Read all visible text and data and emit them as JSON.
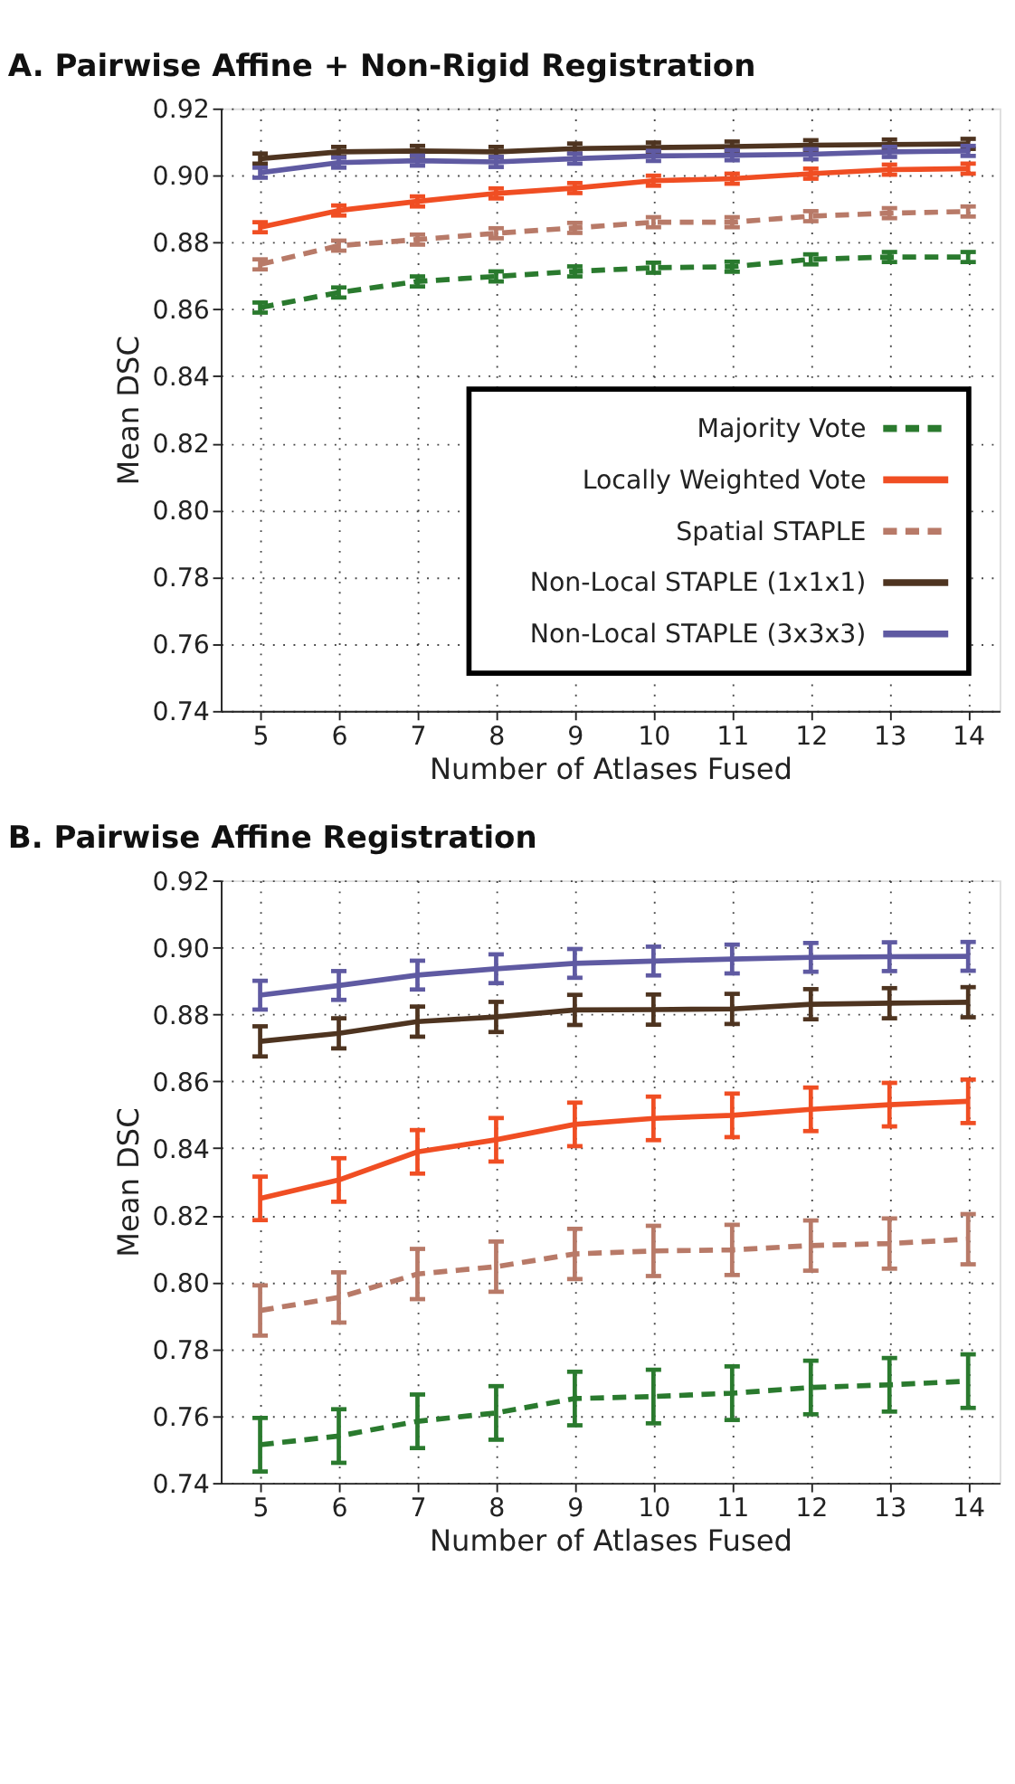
{
  "chart_data": [
    {
      "type": "line",
      "title": "A. Pairwise Affine + Non-Rigid Registration",
      "xlabel": "Number of Atlases Fused",
      "ylabel": "Mean DSC",
      "x": [
        5,
        6,
        7,
        8,
        9,
        10,
        11,
        12,
        13,
        14
      ],
      "xlim": [
        4.5,
        14.4
      ],
      "xticks": [
        5,
        6,
        7,
        8,
        9,
        10,
        11,
        12,
        13,
        14
      ],
      "ylim": [
        0.74,
        0.92
      ],
      "yticks": [
        {
          "value": 0.74,
          "label": "0.74"
        },
        {
          "value": 0.76,
          "label": "0.76"
        },
        {
          "value": 0.78,
          "label": "0.78"
        },
        {
          "value": 0.8,
          "label": "0.80"
        },
        {
          "value": 0.82,
          "label": "0.82"
        },
        {
          "value": 0.84,
          "label": "0.84"
        },
        {
          "value": 0.86,
          "label": "0.86"
        },
        {
          "value": 0.88,
          "label": "0.88"
        },
        {
          "value": 0.9,
          "label": "0.90"
        },
        {
          "value": 0.92,
          "label": "0.92"
        }
      ],
      "grid": true,
      "legend": "bottom right",
      "marker": "none",
      "series": [
        {
          "name": "Majority Vote",
          "color": "#2a7a2e",
          "line_style": "dashed",
          "values": [
            0.8605,
            0.865,
            0.8683,
            0.8698,
            0.8713,
            0.8724,
            0.8727,
            0.8749,
            0.8756,
            0.8756
          ],
          "errors": [
            0.0015,
            0.0015,
            0.0015,
            0.0015,
            0.0015,
            0.0015,
            0.0015,
            0.0015,
            0.0015,
            0.0015
          ]
        },
        {
          "name": "Locally Weighted Vote",
          "color": "#f04e23",
          "line_style": "solid",
          "values": [
            0.8845,
            0.8895,
            0.8922,
            0.8946,
            0.8962,
            0.8984,
            0.899,
            0.9005,
            0.9017,
            0.902
          ],
          "errors": [
            0.0015,
            0.0015,
            0.0015,
            0.0015,
            0.0015,
            0.0015,
            0.0015,
            0.0015,
            0.0015,
            0.0015
          ]
        },
        {
          "name": "Spatial STAPLE",
          "color": "#b87a68",
          "line_style": "dashed",
          "values": [
            0.8734,
            0.879,
            0.8808,
            0.8827,
            0.8843,
            0.886,
            0.886,
            0.8878,
            0.8887,
            0.8892
          ],
          "errors": [
            0.0015,
            0.0015,
            0.0015,
            0.0015,
            0.0015,
            0.0015,
            0.0015,
            0.0015,
            0.0015,
            0.0015
          ]
        },
        {
          "name": "Non-Local STAPLE (1x1x1)",
          "color": "#4e3420",
          "line_style": "solid",
          "values": [
            0.905,
            0.907,
            0.9073,
            0.907,
            0.908,
            0.9083,
            0.9086,
            0.909,
            0.9092,
            0.9094
          ],
          "errors": [
            0.0015,
            0.0015,
            0.0015,
            0.0015,
            0.0015,
            0.0015,
            0.0015,
            0.0015,
            0.0015,
            0.0015
          ]
        },
        {
          "name": "Non-Local STAPLE (3x3x3)",
          "color": "#5f5aa2",
          "line_style": "solid",
          "values": [
            0.9008,
            0.9038,
            0.9044,
            0.904,
            0.905,
            0.9058,
            0.906,
            0.9063,
            0.907,
            0.9073
          ],
          "errors": [
            0.0015,
            0.0015,
            0.0015,
            0.0015,
            0.0015,
            0.0015,
            0.0015,
            0.0015,
            0.0015,
            0.0015
          ]
        }
      ]
    },
    {
      "type": "line",
      "title": "B. Pairwise Affine Registration",
      "xlabel": "Number of Atlases Fused",
      "ylabel": "Mean DSC",
      "x": [
        5,
        6,
        7,
        8,
        9,
        10,
        11,
        12,
        13,
        14
      ],
      "xlim": [
        4.5,
        14.4
      ],
      "xticks": [
        5,
        6,
        7,
        8,
        9,
        10,
        11,
        12,
        13,
        14
      ],
      "ylim": [
        0.74,
        0.92
      ],
      "yticks": [
        {
          "value": 0.74,
          "label": "0.74"
        },
        {
          "value": 0.76,
          "label": "0.76"
        },
        {
          "value": 0.78,
          "label": "0.78"
        },
        {
          "value": 0.8,
          "label": "0.80"
        },
        {
          "value": 0.82,
          "label": "0.82"
        },
        {
          "value": 0.84,
          "label": "0.84"
        },
        {
          "value": 0.86,
          "label": "0.86"
        },
        {
          "value": 0.88,
          "label": "0.88"
        },
        {
          "value": 0.9,
          "label": "0.90"
        },
        {
          "value": 0.92,
          "label": "0.92"
        }
      ],
      "grid": true,
      "marker": "none",
      "series": [
        {
          "color": "#2a7a2e",
          "line_style": "dashed",
          "values": [
            0.7514,
            0.754,
            0.7584,
            0.7609,
            0.7652,
            0.7658,
            0.7668,
            0.7685,
            0.7693,
            0.7704
          ],
          "errors": [
            0.008,
            0.008,
            0.008,
            0.008,
            0.008,
            0.008,
            0.008,
            0.008,
            0.008,
            0.008
          ]
        },
        {
          "color": "#f04e23",
          "line_style": "solid",
          "values": [
            0.825,
            0.8305,
            0.8389,
            0.8425,
            0.8471,
            0.8489,
            0.8498,
            0.8516,
            0.853,
            0.854
          ],
          "errors": [
            0.0065,
            0.0065,
            0.0065,
            0.0065,
            0.0065,
            0.0065,
            0.0065,
            0.0065,
            0.0065,
            0.0065
          ]
        },
        {
          "color": "#b87a68",
          "line_style": "dashed",
          "values": [
            0.7915,
            0.7954,
            0.8024,
            0.8046,
            0.8084,
            0.8093,
            0.8096,
            0.8109,
            0.8115,
            0.8128
          ],
          "errors": [
            0.0075,
            0.0075,
            0.0075,
            0.0075,
            0.0075,
            0.0075,
            0.0075,
            0.0075,
            0.0075,
            0.0075
          ]
        },
        {
          "color": "#4e3420",
          "line_style": "solid",
          "values": [
            0.8719,
            0.8743,
            0.8778,
            0.8792,
            0.8813,
            0.8814,
            0.8816,
            0.883,
            0.8833,
            0.8836
          ],
          "errors": [
            0.0045,
            0.0045,
            0.0045,
            0.0045,
            0.0045,
            0.0045,
            0.0045,
            0.0045,
            0.0045,
            0.0045
          ]
        },
        {
          "color": "#5f5aa2",
          "line_style": "solid",
          "values": [
            0.8857,
            0.8886,
            0.8917,
            0.8936,
            0.8952,
            0.8959,
            0.8965,
            0.897,
            0.8972,
            0.8973
          ],
          "errors": [
            0.0043,
            0.0043,
            0.0043,
            0.0043,
            0.0043,
            0.0043,
            0.0043,
            0.0043,
            0.0043,
            0.0043
          ]
        }
      ]
    }
  ]
}
